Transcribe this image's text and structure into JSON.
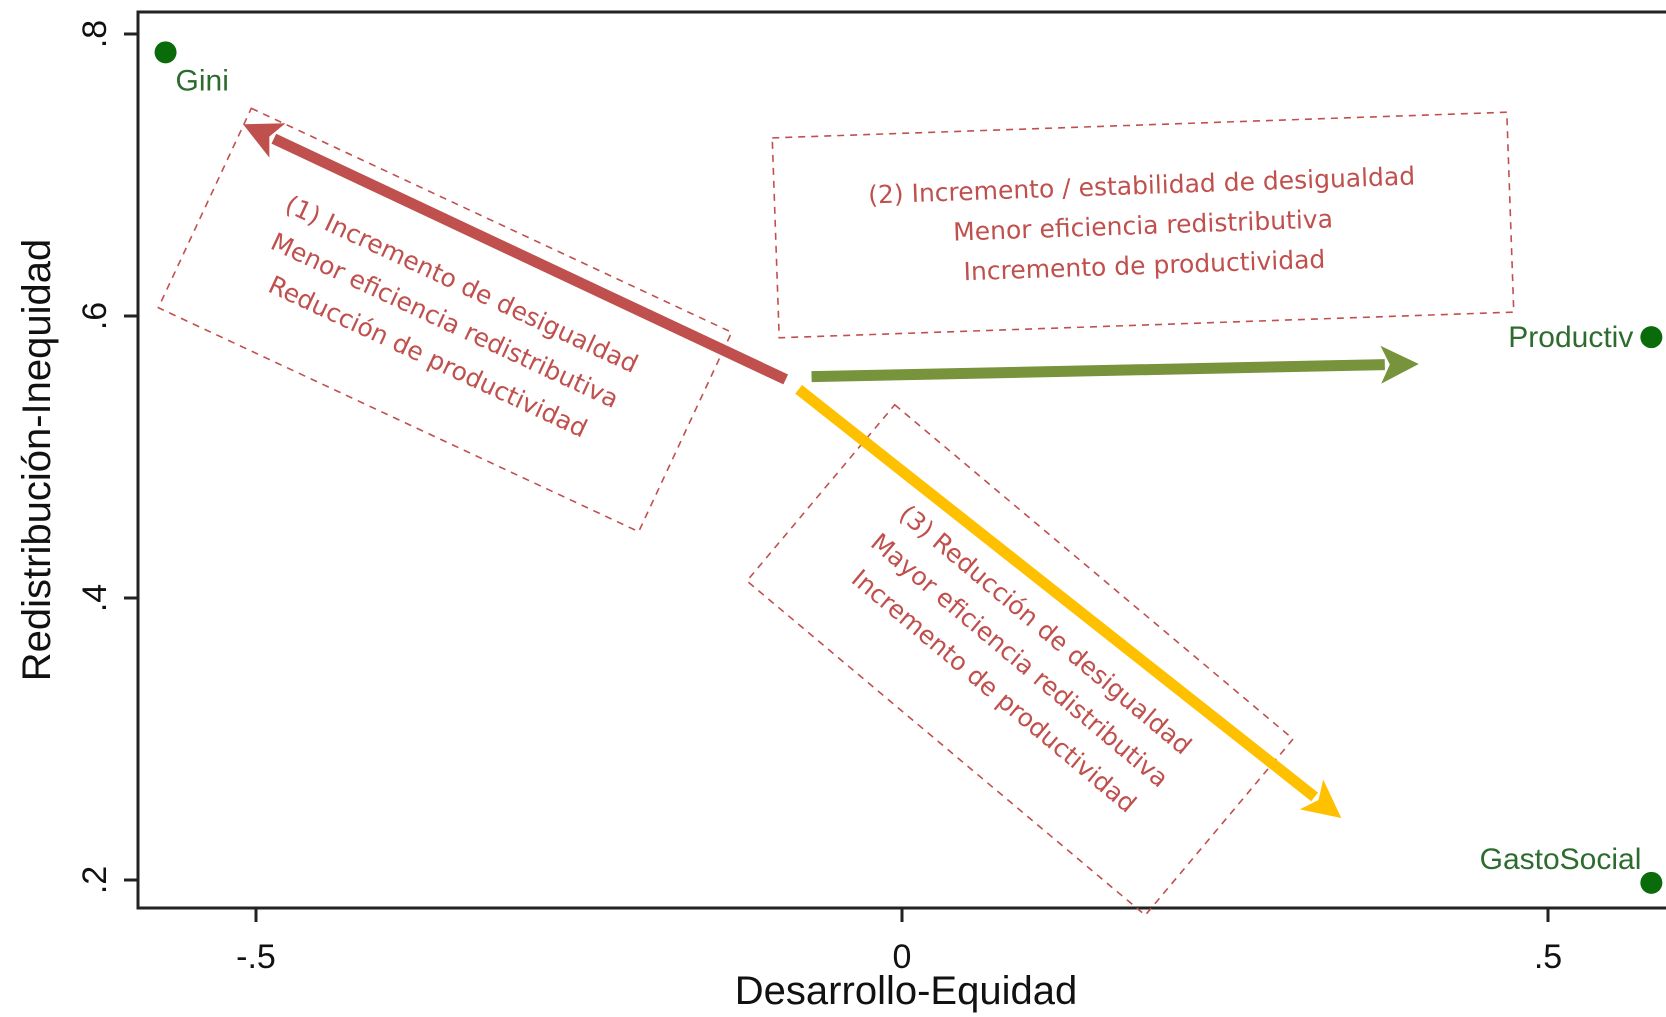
{
  "chart_data": {
    "type": "scatter",
    "xlabel": "Desarrollo-Equidad",
    "ylabel": "Redistribución-Inequidad",
    "xlim": [
      -0.6,
      0.6
    ],
    "ylim": [
      0.18,
      0.82
    ],
    "x_ticks": [
      {
        "value": -0.5,
        "label": "-.5"
      },
      {
        "value": 0,
        "label": "0"
      },
      {
        "value": 0.5,
        "label": ".5"
      }
    ],
    "y_ticks": [
      {
        "value": 0.2,
        "label": ".2"
      },
      {
        "value": 0.4,
        "label": ".4"
      },
      {
        "value": 0.6,
        "label": ".6"
      },
      {
        "value": 0.8,
        "label": ".8"
      }
    ],
    "grid": false,
    "points": [
      {
        "name": "Gini",
        "x": -0.57,
        "y": 0.787,
        "label_position": "below-right"
      },
      {
        "name": "Productiv",
        "x": 0.58,
        "y": 0.585,
        "label_position": "left"
      },
      {
        "name": "GastoSocial",
        "x": 0.58,
        "y": 0.198,
        "label_position": "upper-left"
      }
    ],
    "arrows": [
      {
        "name": "arrow-1",
        "from": [
          -0.09,
          0.555
        ],
        "to": [
          -0.51,
          0.736
        ],
        "color": "#c0504d"
      },
      {
        "name": "arrow-2",
        "from": [
          -0.07,
          0.557
        ],
        "to": [
          0.4,
          0.566
        ],
        "color": "#77933c"
      },
      {
        "name": "arrow-3",
        "from": [
          -0.08,
          0.548
        ],
        "to": [
          0.34,
          0.244
        ],
        "color": "#ffc000"
      }
    ],
    "annotations": [
      {
        "name": "annotation-1",
        "lines": [
          "(1) Incremento de desigualdad",
          "Menor eficiencia redistributiva",
          "Reducción de productividad"
        ],
        "rotation": 25
      },
      {
        "name": "annotation-2",
        "lines": [
          "(2) Incremento / estabilidad de desigualdad",
          "Menor eficiencia redistributiva",
          "Incremento de productividad"
        ],
        "rotation": -2
      },
      {
        "name": "annotation-3",
        "lines": [
          "(3) Reducción de desigualdad",
          "Mayor eficiencia redistributiva",
          "Incremento de productividad"
        ],
        "rotation": 40
      }
    ],
    "colors": {
      "point": "#0a6b0a",
      "point_label": "#2e6b2e",
      "annotation": "#c0504d"
    }
  }
}
